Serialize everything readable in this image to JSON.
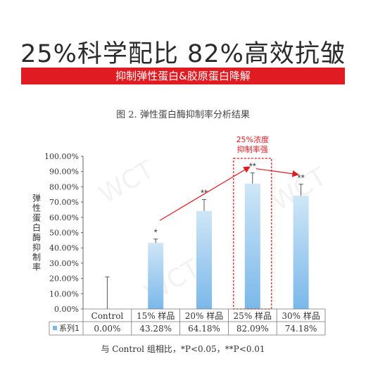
{
  "headline": "25%科学配比  82%高效抗皱",
  "banner": "抑制弹性蛋白&胶原蛋白降解",
  "figure_caption": "图 2. 弹性蛋白酶抑制率分析结果",
  "annotation": {
    "line1": "25%浓度",
    "line2": "抑制率强"
  },
  "watermark": "WCT",
  "footnote": "与 Control 组相比，*P<0.05，**P<0.01",
  "colors": {
    "bar_top": "#cfe6f7",
    "bar_bottom": "#7ab8ea",
    "accent": "#e11b22"
  },
  "chart_data": {
    "type": "bar",
    "title": "",
    "ylabel": "弹性蛋白酶抑制率",
    "xlabel": "",
    "categories": [
      "Control",
      "15% 样品",
      "20% 样品",
      "25% 样品",
      "30% 样品"
    ],
    "series": [
      {
        "name": "系列1",
        "values": [
          0.0,
          43.28,
          64.18,
          82.09,
          74.18
        ],
        "labels": [
          "0.00%",
          "43.28%",
          "64.18%",
          "82.09%",
          "74.18%"
        ],
        "error": [
          21.0,
          2.5,
          7.5,
          7.0,
          7.5
        ],
        "significance": [
          "",
          "*",
          "**",
          "**",
          "**"
        ]
      }
    ],
    "ylim": [
      0,
      100
    ],
    "yticks": [
      "0.00%",
      "10.00%",
      "20.00%",
      "30.00%",
      "40.00%",
      "50.00%",
      "60.00%",
      "70.00%",
      "80.00%",
      "90.00%",
      "100.00%"
    ],
    "highlight_category": "25% 样品",
    "legend": "table-bottom-left",
    "grid": false
  }
}
